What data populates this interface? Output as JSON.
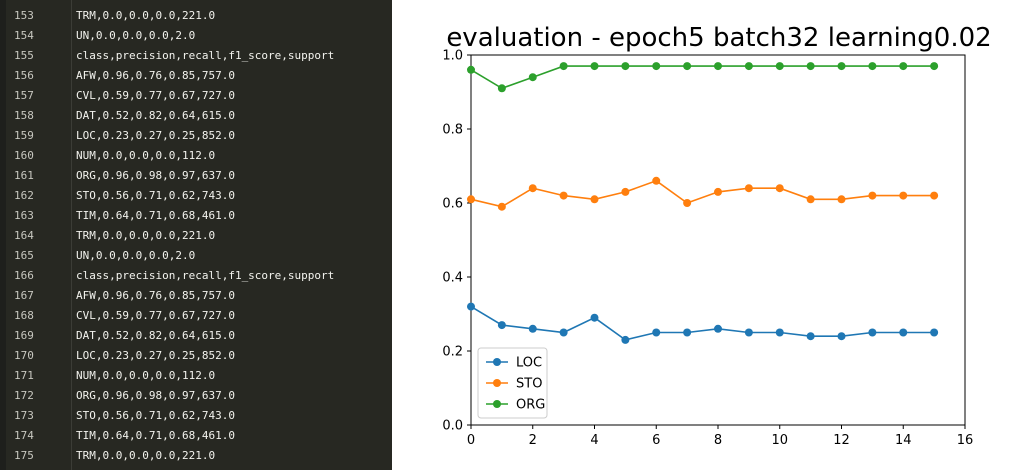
{
  "editor": {
    "lines": [
      {
        "num": "153",
        "text": "TRM,0.0,0.0,0.0,221.0"
      },
      {
        "num": "154",
        "text": "UN,0.0,0.0,0.0,2.0"
      },
      {
        "num": "155",
        "text": "class,precision,recall,f1_score,support"
      },
      {
        "num": "156",
        "text": "AFW,0.96,0.76,0.85,757.0"
      },
      {
        "num": "157",
        "text": "CVL,0.59,0.77,0.67,727.0"
      },
      {
        "num": "158",
        "text": "DAT,0.52,0.82,0.64,615.0"
      },
      {
        "num": "159",
        "text": "LOC,0.23,0.27,0.25,852.0"
      },
      {
        "num": "160",
        "text": "NUM,0.0,0.0,0.0,112.0"
      },
      {
        "num": "161",
        "text": "ORG,0.96,0.98,0.97,637.0"
      },
      {
        "num": "162",
        "text": "STO,0.56,0.71,0.62,743.0"
      },
      {
        "num": "163",
        "text": "TIM,0.64,0.71,0.68,461.0"
      },
      {
        "num": "164",
        "text": "TRM,0.0,0.0,0.0,221.0"
      },
      {
        "num": "165",
        "text": "UN,0.0,0.0,0.0,2.0"
      },
      {
        "num": "166",
        "text": "class,precision,recall,f1_score,support"
      },
      {
        "num": "167",
        "text": "AFW,0.96,0.76,0.85,757.0"
      },
      {
        "num": "168",
        "text": "CVL,0.59,0.77,0.67,727.0"
      },
      {
        "num": "169",
        "text": "DAT,0.52,0.82,0.64,615.0"
      },
      {
        "num": "170",
        "text": "LOC,0.23,0.27,0.25,852.0"
      },
      {
        "num": "171",
        "text": "NUM,0.0,0.0,0.0,112.0"
      },
      {
        "num": "172",
        "text": "ORG,0.96,0.98,0.97,637.0"
      },
      {
        "num": "173",
        "text": "STO,0.56,0.71,0.62,743.0"
      },
      {
        "num": "174",
        "text": "TIM,0.64,0.71,0.68,461.0"
      },
      {
        "num": "175",
        "text": "TRM,0.0,0.0,0.0,221.0"
      }
    ]
  },
  "chart_data": {
    "type": "line",
    "title": "evaluation - epoch5 batch32 learning0.02",
    "xlabel": "",
    "ylabel": "",
    "xlim": [
      0,
      16
    ],
    "ylim": [
      0.0,
      1.0
    ],
    "xticks": [
      "0",
      "2",
      "4",
      "6",
      "8",
      "10",
      "12",
      "14",
      "16"
    ],
    "yticks": [
      "0.0",
      "0.2",
      "0.4",
      "0.6",
      "0.8",
      "1.0"
    ],
    "grid": false,
    "legend_position": "lower-left",
    "x": [
      0,
      1,
      2,
      3,
      4,
      5,
      6,
      7,
      8,
      9,
      10,
      11,
      12,
      13,
      14,
      15
    ],
    "series": [
      {
        "name": "LOC",
        "color": "#1f77b4",
        "values": [
          0.32,
          0.27,
          0.26,
          0.25,
          0.29,
          0.23,
          0.25,
          0.25,
          0.26,
          0.25,
          0.25,
          0.24,
          0.24,
          0.25,
          0.25,
          0.25
        ]
      },
      {
        "name": "STO",
        "color": "#ff7f0e",
        "values": [
          0.61,
          0.59,
          0.64,
          0.62,
          0.61,
          0.63,
          0.66,
          0.6,
          0.63,
          0.64,
          0.64,
          0.61,
          0.61,
          0.62,
          0.62,
          0.62
        ]
      },
      {
        "name": "ORG",
        "color": "#2ca02c",
        "values": [
          0.96,
          0.91,
          0.94,
          0.97,
          0.97,
          0.97,
          0.97,
          0.97,
          0.97,
          0.97,
          0.97,
          0.97,
          0.97,
          0.97,
          0.97,
          0.97
        ]
      }
    ]
  }
}
